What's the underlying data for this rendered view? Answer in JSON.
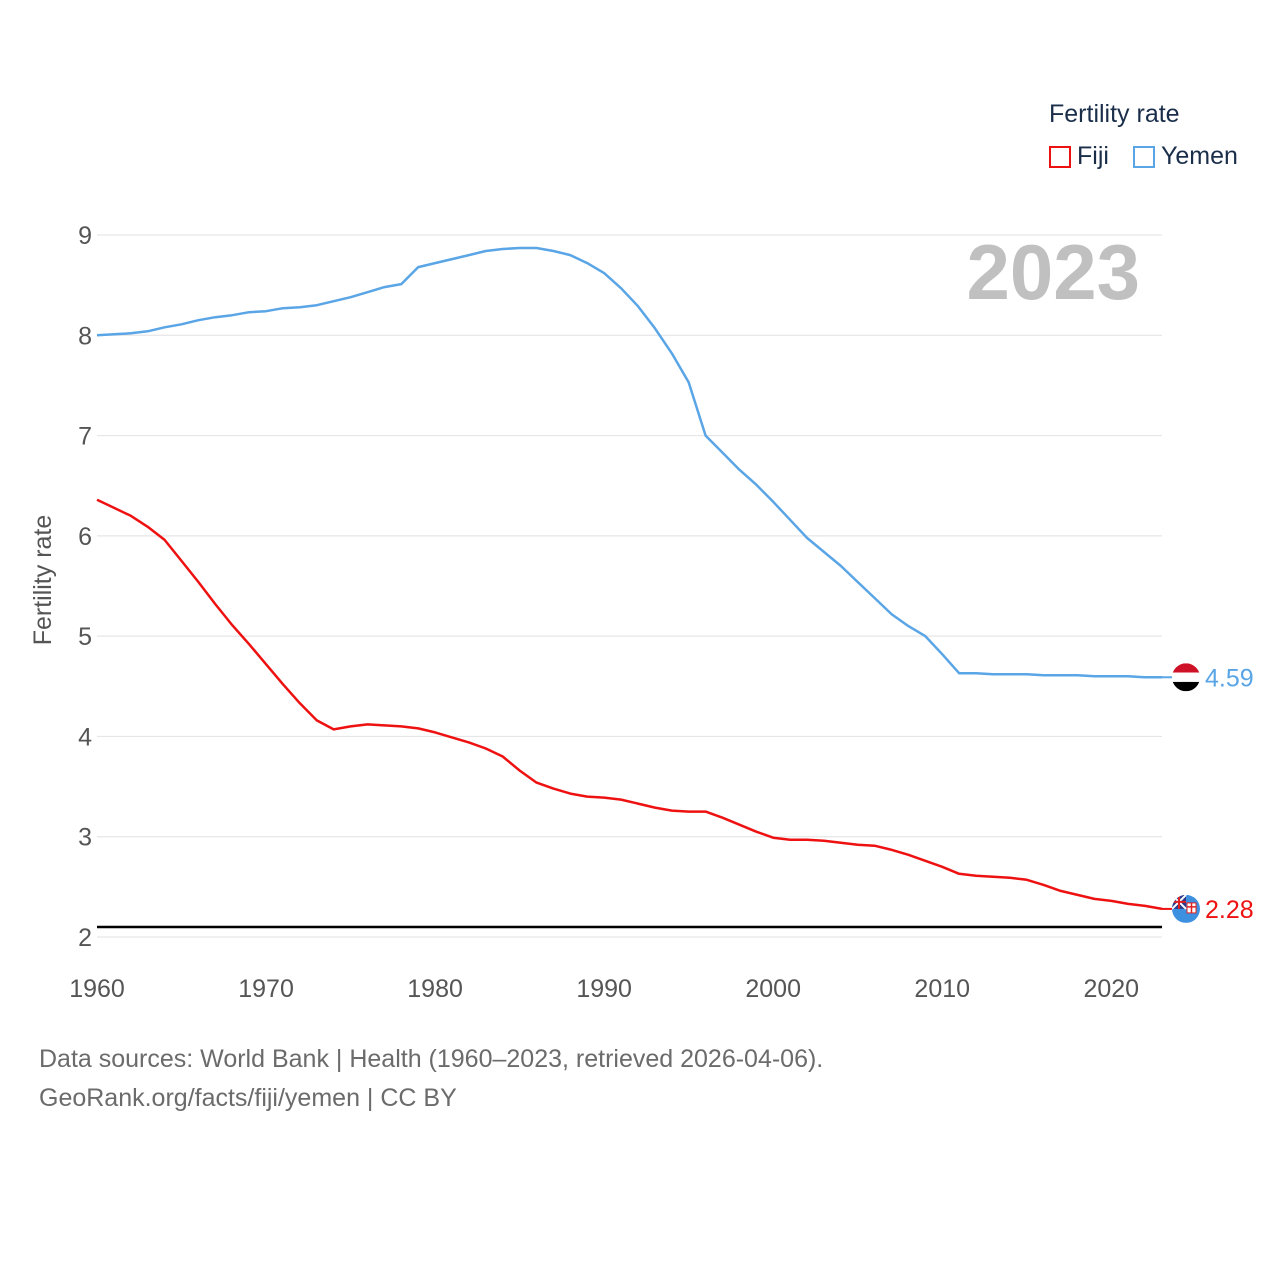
{
  "legend": {
    "title": "Fertility rate",
    "items": [
      {
        "label": "Fiji",
        "color": "#ee1111"
      },
      {
        "label": "Yemen",
        "color": "#5aa5e6"
      }
    ]
  },
  "footer": {
    "line1": "Data sources: World Bank | Health (1960–2023, retrieved 2026-04-06).",
    "line2": "GeoRank.org/facts/fiji/yemen | CC BY"
  },
  "chart_data": {
    "type": "line",
    "title": "",
    "year_label": "2023",
    "xlabel": "",
    "ylabel": "Fertility rate",
    "xlim": [
      1960,
      2023
    ],
    "ylim": [
      2,
      9
    ],
    "x_ticks": [
      1960,
      1970,
      1980,
      1990,
      2000,
      2010,
      2020
    ],
    "y_ticks": [
      2,
      3,
      4,
      5,
      6,
      7,
      8,
      9
    ],
    "reference_line": 2.1,
    "x": [
      1960,
      1961,
      1962,
      1963,
      1964,
      1965,
      1966,
      1967,
      1968,
      1969,
      1970,
      1971,
      1972,
      1973,
      1974,
      1975,
      1976,
      1977,
      1978,
      1979,
      1980,
      1981,
      1982,
      1983,
      1984,
      1985,
      1986,
      1987,
      1988,
      1989,
      1990,
      1991,
      1992,
      1993,
      1994,
      1995,
      1996,
      1997,
      1998,
      1999,
      2000,
      2001,
      2002,
      2003,
      2004,
      2005,
      2006,
      2007,
      2008,
      2009,
      2010,
      2011,
      2012,
      2013,
      2014,
      2015,
      2016,
      2017,
      2018,
      2019,
      2020,
      2021,
      2022,
      2023
    ],
    "series": [
      {
        "name": "Fiji",
        "color": "#ee1111",
        "end_label": "2.28",
        "values": [
          6.36,
          6.28,
          6.2,
          6.09,
          5.96,
          5.75,
          5.54,
          5.32,
          5.11,
          4.92,
          4.72,
          4.52,
          4.33,
          4.16,
          4.07,
          4.1,
          4.12,
          4.11,
          4.1,
          4.08,
          4.04,
          3.99,
          3.94,
          3.88,
          3.8,
          3.66,
          3.54,
          3.48,
          3.43,
          3.4,
          3.39,
          3.37,
          3.33,
          3.29,
          3.26,
          3.25,
          3.25,
          3.19,
          3.12,
          3.05,
          2.99,
          2.97,
          2.97,
          2.96,
          2.94,
          2.92,
          2.91,
          2.87,
          2.82,
          2.76,
          2.7,
          2.63,
          2.61,
          2.6,
          2.59,
          2.57,
          2.52,
          2.46,
          2.42,
          2.38,
          2.36,
          2.33,
          2.31,
          2.28
        ]
      },
      {
        "name": "Yemen",
        "color": "#5aa5e6",
        "end_label": "4.59",
        "values": [
          8.0,
          8.01,
          8.02,
          8.04,
          8.08,
          8.11,
          8.15,
          8.18,
          8.2,
          8.23,
          8.24,
          8.27,
          8.28,
          8.3,
          8.34,
          8.38,
          8.43,
          8.48,
          8.51,
          8.68,
          8.72,
          8.76,
          8.8,
          8.84,
          8.86,
          8.87,
          8.87,
          8.84,
          8.8,
          8.72,
          8.62,
          8.47,
          8.29,
          8.07,
          7.82,
          7.53,
          7.0,
          6.83,
          6.66,
          6.51,
          6.34,
          6.16,
          5.98,
          5.84,
          5.7,
          5.54,
          5.38,
          5.22,
          5.1,
          5.0,
          4.82,
          4.63,
          4.63,
          4.62,
          4.62,
          4.62,
          4.61,
          4.61,
          4.61,
          4.6,
          4.6,
          4.6,
          4.59,
          4.59
        ]
      }
    ]
  }
}
